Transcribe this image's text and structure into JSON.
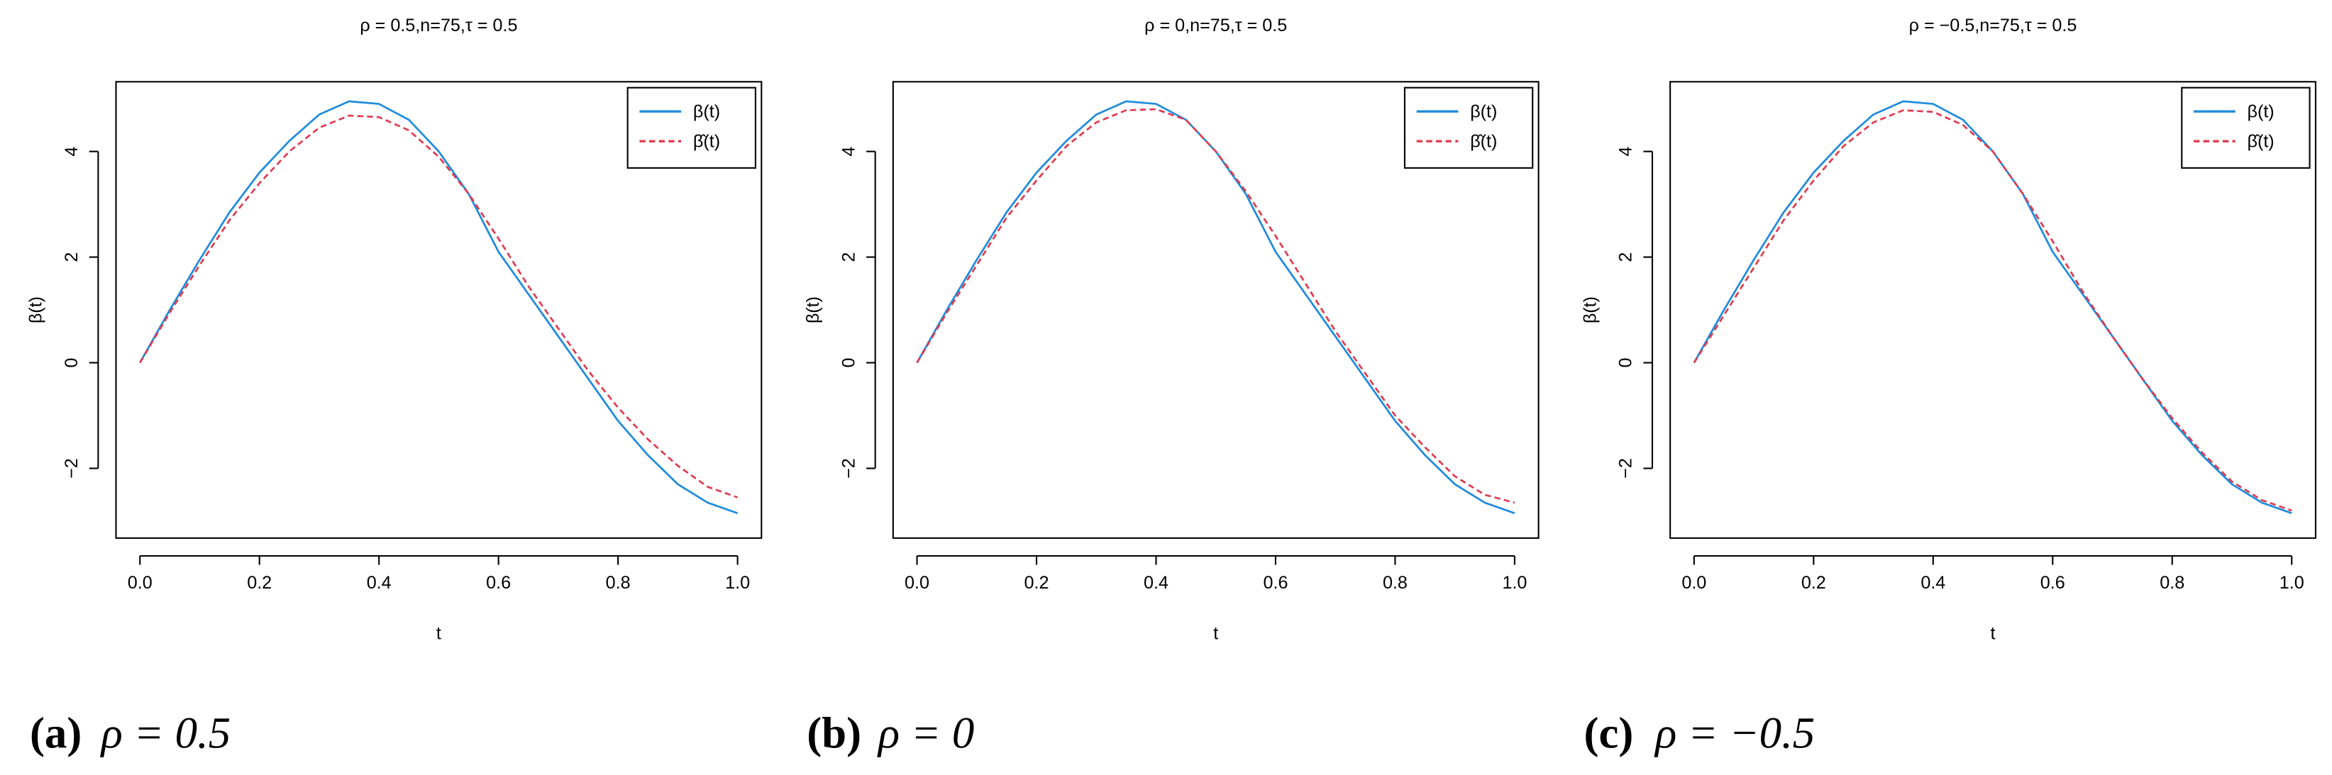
{
  "chart_data": [
    {
      "type": "line",
      "title": "ρ = 0.5,n=75,τ = 0.5",
      "xlabel": "t",
      "ylabel": "β(t)",
      "caption": {
        "label": "(a)",
        "text": "ρ = 0.5"
      },
      "x": [
        0,
        0.05,
        0.1,
        0.15,
        0.2,
        0.25,
        0.3,
        0.35,
        0.4,
        0.45,
        0.5,
        0.55,
        0.6,
        0.65,
        0.7,
        0.75,
        0.8,
        0.85,
        0.9,
        0.95,
        1
      ],
      "series": [
        {
          "name": "β(t)",
          "color": "#1f8bdc",
          "dash": false,
          "values": [
            0,
            1.0,
            1.95,
            2.85,
            3.6,
            4.2,
            4.7,
            4.95,
            4.9,
            4.6,
            4.0,
            3.2,
            2.1,
            1.3,
            0.5,
            -0.3,
            -1.1,
            -1.75,
            -2.3,
            -2.65,
            -2.85
          ]
        },
        {
          "name": "β̂(t)",
          "color": "#df3c50",
          "dash": true,
          "values": [
            0,
            0.95,
            1.85,
            2.7,
            3.4,
            4.0,
            4.45,
            4.68,
            4.65,
            4.4,
            3.9,
            3.2,
            2.35,
            1.45,
            0.65,
            -0.15,
            -0.85,
            -1.45,
            -1.95,
            -2.35,
            -2.55
          ]
        }
      ],
      "xlim": [
        -0.04,
        1.04
      ],
      "ylim": [
        -3.32,
        5.32
      ],
      "xticks": [
        {
          "value": 0,
          "label": "0.0"
        },
        0.2,
        0.4,
        0.6,
        0.8,
        {
          "value": 1,
          "label": "1.0"
        }
      ],
      "yticks": [
        {
          "value": -2,
          "label": "−2"
        },
        0,
        2,
        4
      ],
      "legend": "top-right"
    },
    {
      "type": "line",
      "title": "ρ = 0,n=75,τ = 0.5",
      "xlabel": "t",
      "ylabel": "β(t)",
      "caption": {
        "label": "(b)",
        "text": "ρ = 0"
      },
      "x": [
        0,
        0.05,
        0.1,
        0.15,
        0.2,
        0.25,
        0.3,
        0.35,
        0.4,
        0.45,
        0.5,
        0.55,
        0.6,
        0.65,
        0.7,
        0.75,
        0.8,
        0.85,
        0.9,
        0.95,
        1
      ],
      "series": [
        {
          "name": "β(t)",
          "color": "#1f8bdc",
          "dash": false,
          "values": [
            0,
            1.0,
            1.95,
            2.85,
            3.6,
            4.2,
            4.7,
            4.95,
            4.9,
            4.6,
            4.0,
            3.2,
            2.1,
            1.3,
            0.5,
            -0.3,
            -1.1,
            -1.75,
            -2.3,
            -2.65,
            -2.85
          ]
        },
        {
          "name": "β̂(t)",
          "color": "#df3c50",
          "dash": true,
          "values": [
            0,
            0.95,
            1.85,
            2.75,
            3.45,
            4.1,
            4.55,
            4.78,
            4.8,
            4.6,
            4.0,
            3.25,
            2.4,
            1.5,
            0.6,
            -0.2,
            -1.0,
            -1.6,
            -2.15,
            -2.5,
            -2.65
          ]
        }
      ],
      "xlim": [
        -0.04,
        1.04
      ],
      "ylim": [
        -3.32,
        5.32
      ],
      "xticks": [
        {
          "value": 0,
          "label": "0.0"
        },
        0.2,
        0.4,
        0.6,
        0.8,
        {
          "value": 1,
          "label": "1.0"
        }
      ],
      "yticks": [
        {
          "value": -2,
          "label": "−2"
        },
        0,
        2,
        4
      ],
      "legend": "top-right"
    },
    {
      "type": "line",
      "title": "ρ = −0.5,n=75,τ = 0.5",
      "xlabel": "t",
      "ylabel": "β(t)",
      "caption": {
        "label": "(c)",
        "text": "ρ = −0.5"
      },
      "x": [
        0,
        0.05,
        0.1,
        0.15,
        0.2,
        0.25,
        0.3,
        0.35,
        0.4,
        0.45,
        0.5,
        0.55,
        0.6,
        0.65,
        0.7,
        0.75,
        0.8,
        0.85,
        0.9,
        0.95,
        1
      ],
      "series": [
        {
          "name": "β(t)",
          "color": "#1f8bdc",
          "dash": false,
          "values": [
            0,
            1.0,
            1.95,
            2.85,
            3.6,
            4.2,
            4.7,
            4.95,
            4.9,
            4.6,
            4.0,
            3.2,
            2.1,
            1.3,
            0.5,
            -0.3,
            -1.1,
            -1.75,
            -2.3,
            -2.65,
            -2.85
          ]
        },
        {
          "name": "β̂(t)",
          "color": "#df3c50",
          "dash": true,
          "values": [
            0,
            0.9,
            1.8,
            2.7,
            3.45,
            4.1,
            4.55,
            4.78,
            4.75,
            4.5,
            4.0,
            3.2,
            2.3,
            1.35,
            0.5,
            -0.3,
            -1.05,
            -1.7,
            -2.25,
            -2.6,
            -2.8
          ]
        }
      ],
      "xlim": [
        -0.04,
        1.04
      ],
      "ylim": [
        -3.32,
        5.32
      ],
      "xticks": [
        {
          "value": 0,
          "label": "0.0"
        },
        0.2,
        0.4,
        0.6,
        0.8,
        {
          "value": 1,
          "label": "1.0"
        }
      ],
      "yticks": [
        {
          "value": -2,
          "label": "−2"
        },
        0,
        2,
        4
      ],
      "legend": "top-right"
    }
  ]
}
